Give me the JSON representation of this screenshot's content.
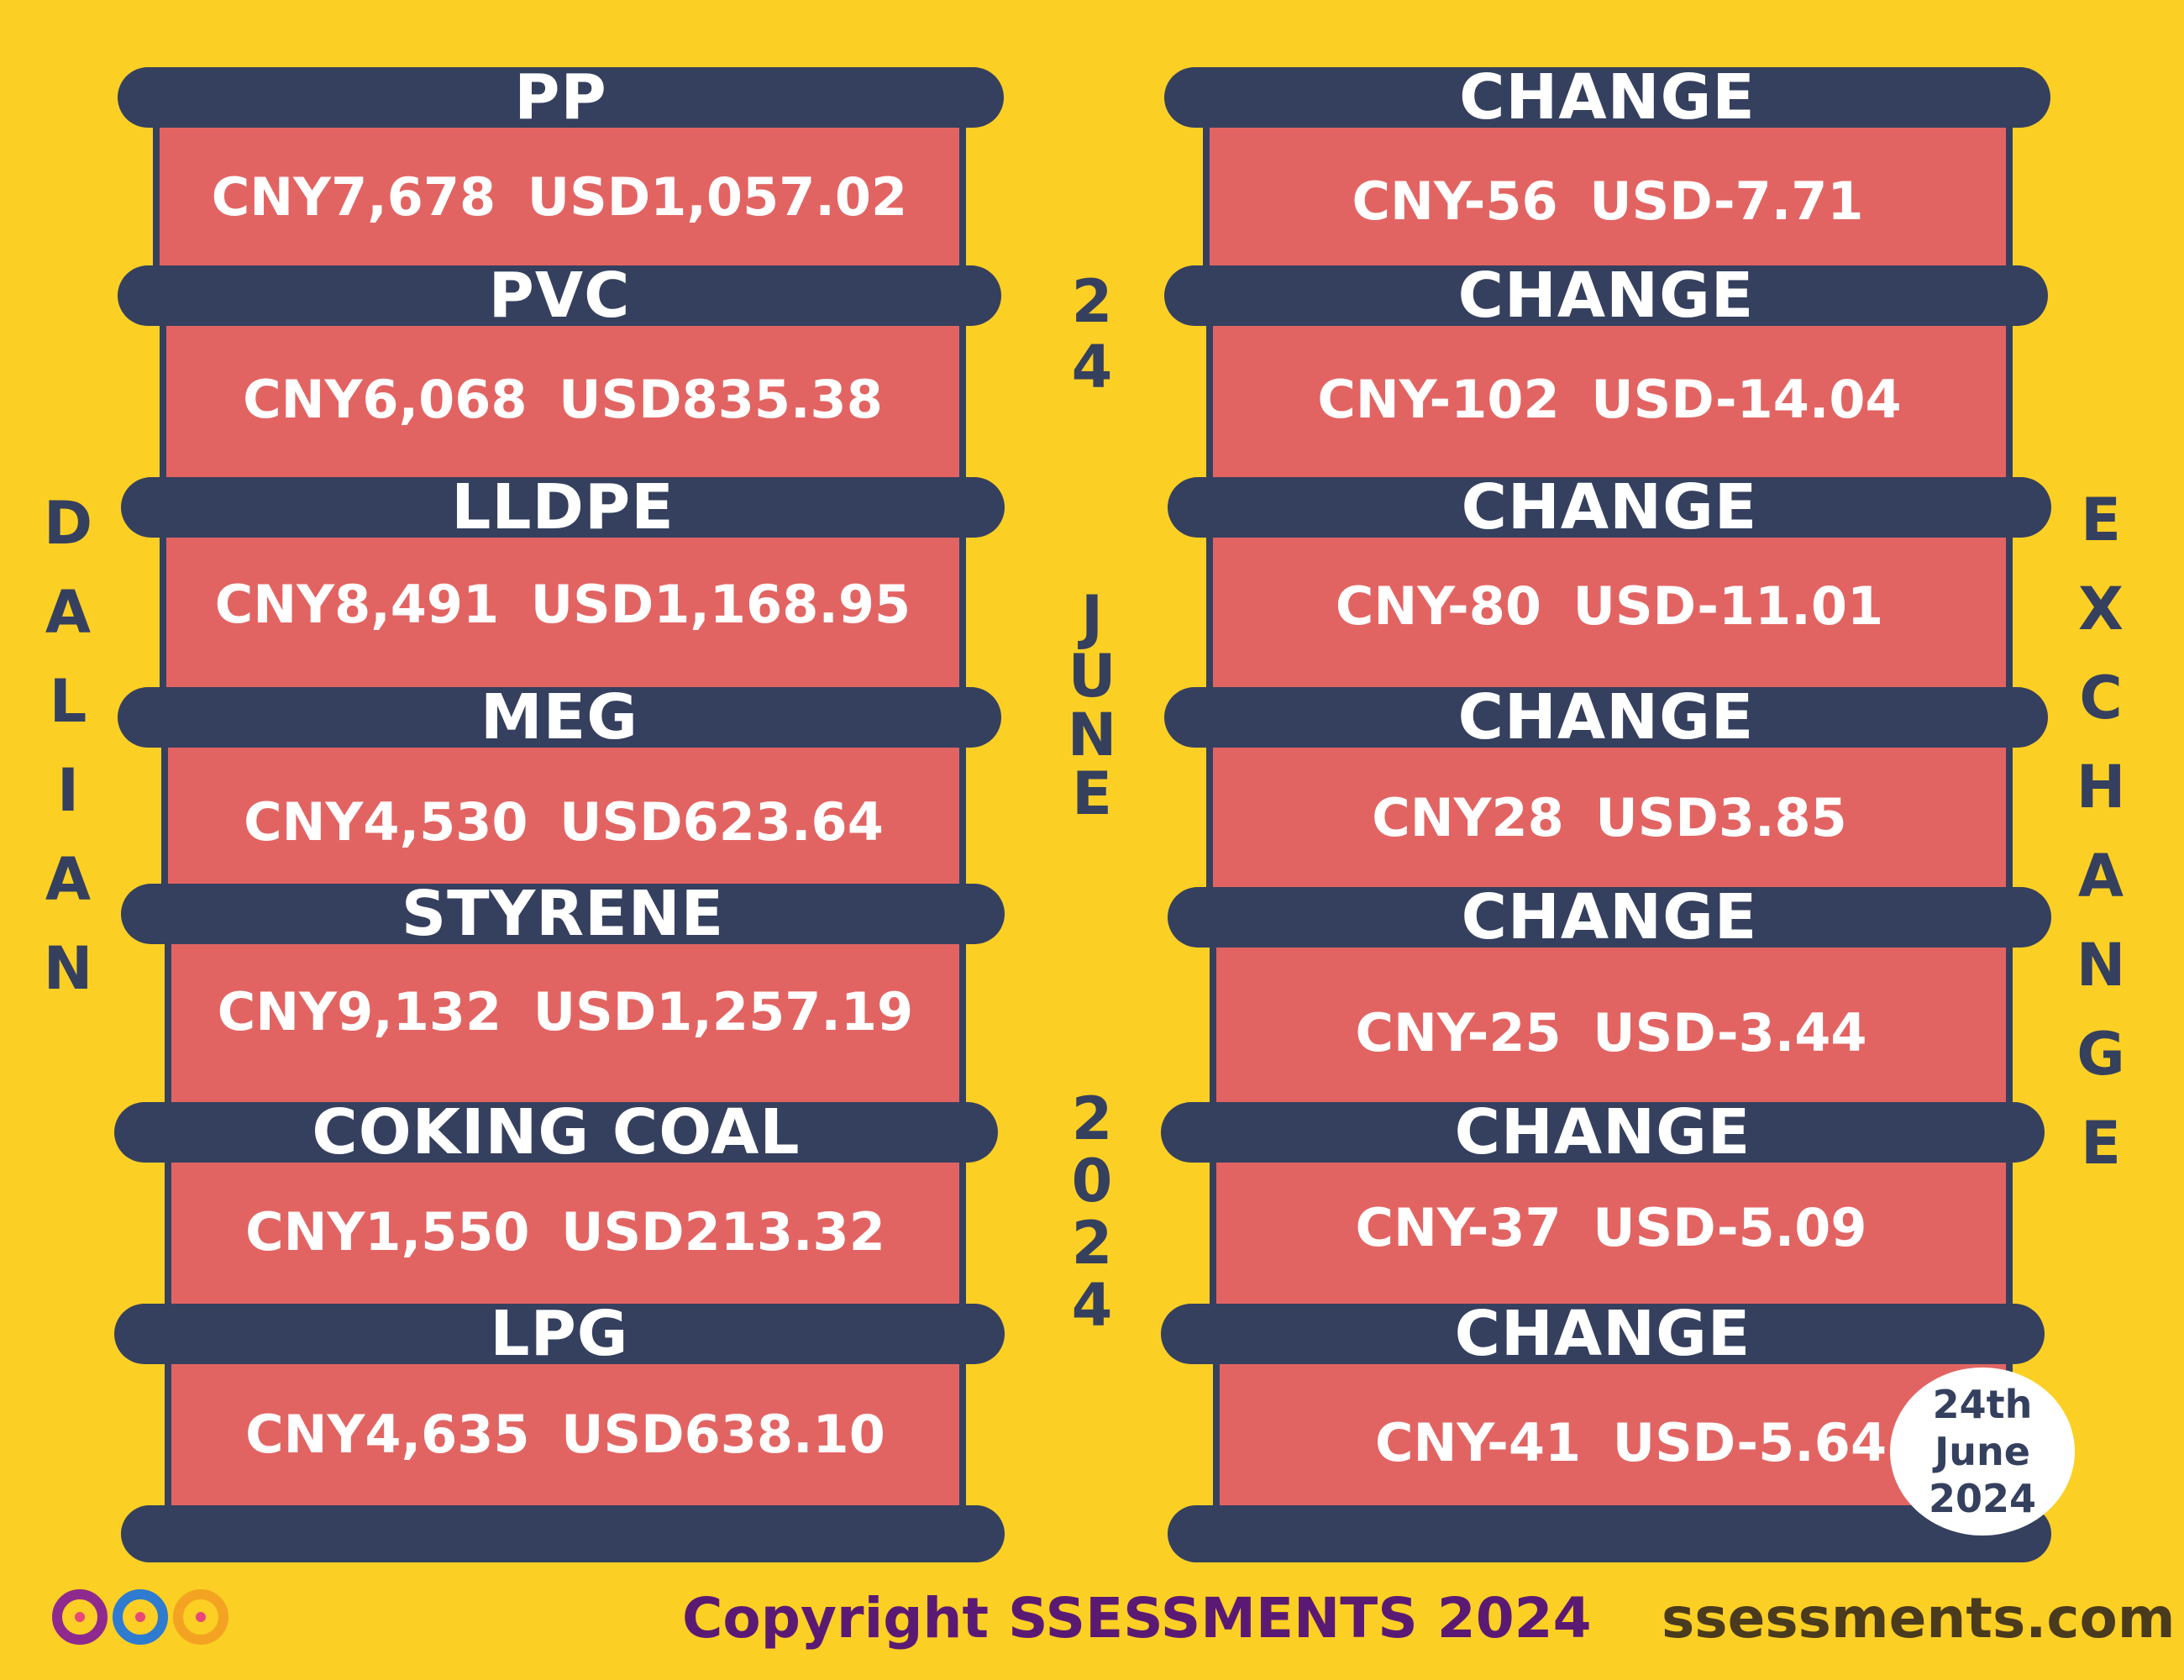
{
  "left_vertical": "DALIAN",
  "right_vertical": "EXCHANGE",
  "date_day": "24",
  "date_month": "JUNE",
  "date_year": "2024",
  "products": [
    {
      "name": "PP",
      "price": "CNY7,678  USD1,057.02",
      "change_label": "CHANGE",
      "change": "CNY-56  USD-7.71"
    },
    {
      "name": "PVC",
      "price": "CNY6,068  USD835.38",
      "change_label": "CHANGE",
      "change": "CNY-102  USD-14.04"
    },
    {
      "name": "LLDPE",
      "price": "CNY8,491  USD1,168.95",
      "change_label": "CHANGE",
      "change": "CNY-80  USD-11.01"
    },
    {
      "name": "MEG",
      "price": "CNY4,530  USD623.64",
      "change_label": "CHANGE",
      "change": "CNY28  USD3.85"
    },
    {
      "name": "STYRENE",
      "price": "CNY9,132  USD1,257.19",
      "change_label": "CHANGE",
      "change": "CNY-25  USD-3.44"
    },
    {
      "name": "COKING COAL",
      "price": "CNY1,550  USD213.32",
      "change_label": "CHANGE",
      "change": "CNY-37  USD-5.09"
    },
    {
      "name": "LPG",
      "price": "CNY4,635  USD638.10",
      "change_label": "CHANGE",
      "change": "CNY-41  USD-5.64"
    }
  ],
  "badge": {
    "line1": "24th",
    "line2": "June",
    "line3": "2024"
  },
  "copyright": "Copyright SSESSMENTS 2024",
  "website": "ssessments.com",
  "colors": {
    "background": "#FCCF24",
    "bar": "#35405F",
    "panel": "#E26462",
    "copyright": "#5A1A74",
    "website": "#4A3A1E"
  }
}
